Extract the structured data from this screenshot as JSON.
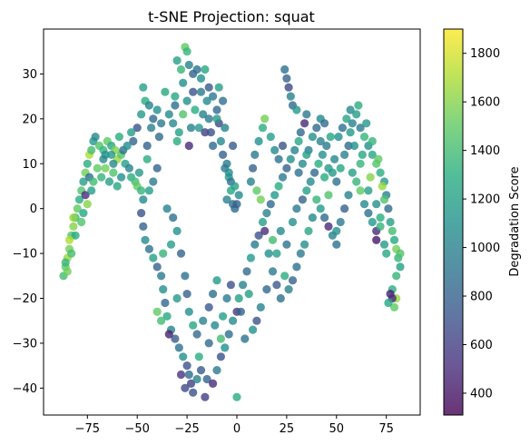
{
  "chart_data": {
    "type": "scatter",
    "title": "t-SNE Projection: squat",
    "xlabel": "",
    "ylabel": "",
    "xlim": [
      -97,
      92
    ],
    "ylim": [
      -46,
      40
    ],
    "x_ticks": [
      -75,
      -50,
      -25,
      0,
      25,
      50,
      75
    ],
    "y_ticks": [
      -40,
      -30,
      -20,
      -10,
      0,
      10,
      20,
      30
    ],
    "x_tick_labels": [
      "−75",
      "−50",
      "−25",
      "0",
      "25",
      "50",
      "75"
    ],
    "y_tick_labels": [
      "−40",
      "−30",
      "−20",
      "−10",
      "0",
      "10",
      "20",
      "30"
    ],
    "grid": false,
    "colormap": "viridis",
    "marker_alpha": 0.8,
    "colorbar": {
      "label": "Degradation Score",
      "range": [
        310,
        1900
      ],
      "ticks": [
        400,
        600,
        800,
        1000,
        1200,
        1400,
        1600,
        1800
      ],
      "tick_labels": [
        "400",
        "600",
        "800",
        "1000",
        "1200",
        "1400",
        "1600",
        "1800"
      ]
    },
    "points": [
      [
        -87,
        -15,
        1400
      ],
      [
        -86,
        -13,
        1500
      ],
      [
        -85,
        -11,
        1650
      ],
      [
        -84,
        -9,
        1550
      ],
      [
        -83,
        -6,
        1450
      ],
      [
        -82,
        -4,
        1600
      ],
      [
        -81,
        -2,
        1350
      ],
      [
        -80,
        0,
        1500
      ],
      [
        -79,
        2,
        1300
      ],
      [
        -78,
        4,
        1450
      ],
      [
        -77,
        6,
        1200
      ],
      [
        -76,
        8,
        1550
      ],
      [
        -75,
        10,
        1300
      ],
      [
        -74,
        12,
        1700
      ],
      [
        -73,
        13,
        1400
      ],
      [
        -72,
        15,
        1150
      ],
      [
        -71,
        16,
        1050
      ],
      [
        -69,
        14,
        1450
      ],
      [
        -67,
        13,
        1350
      ],
      [
        -65,
        15,
        1500
      ],
      [
        -63,
        14,
        1250
      ],
      [
        -61,
        13,
        1600
      ],
      [
        -60,
        11,
        1650
      ],
      [
        -58,
        12,
        1450
      ],
      [
        -56,
        10,
        1200
      ],
      [
        -54,
        9,
        1000
      ],
      [
        -53,
        7,
        1300
      ],
      [
        -51,
        6,
        1400
      ],
      [
        -50,
        5,
        1500
      ],
      [
        -48,
        4,
        1350
      ],
      [
        -76,
        3,
        500
      ],
      [
        -74,
        7,
        900
      ],
      [
        -77,
        -1,
        1250
      ],
      [
        -66,
        12,
        1100
      ],
      [
        -62,
        10,
        1050
      ],
      [
        -57,
        13,
        900
      ],
      [
        -52,
        15,
        800
      ],
      [
        -50,
        18,
        700
      ],
      [
        -48,
        21,
        1150
      ],
      [
        -46,
        24,
        1300
      ],
      [
        -47,
        27,
        1200
      ],
      [
        -44,
        23,
        1000
      ],
      [
        -42,
        20,
        850
      ],
      [
        -40,
        22,
        1100
      ],
      [
        -38,
        19,
        950
      ],
      [
        -36,
        26,
        1250
      ],
      [
        -34,
        21,
        1050
      ],
      [
        -31,
        23,
        900
      ],
      [
        -30,
        33,
        1200
      ],
      [
        -28,
        31,
        1350
      ],
      [
        -26,
        36,
        1500
      ],
      [
        -25,
        35,
        1350
      ],
      [
        -24,
        32,
        1000
      ],
      [
        -22,
        30,
        800
      ],
      [
        -20,
        31,
        900
      ],
      [
        -18,
        29,
        1100
      ],
      [
        -16,
        31,
        1250
      ],
      [
        -14,
        27,
        750
      ],
      [
        -12,
        25,
        950
      ],
      [
        -10,
        22,
        850
      ],
      [
        -9,
        19,
        650
      ],
      [
        -8,
        15,
        1050
      ],
      [
        -7,
        12,
        800
      ],
      [
        -6,
        9,
        950
      ],
      [
        -4,
        7,
        1150
      ],
      [
        -3,
        4,
        1250
      ],
      [
        -5,
        2,
        1000
      ],
      [
        -2,
        1,
        900
      ],
      [
        -1,
        0,
        850
      ],
      [
        -22,
        26,
        700
      ],
      [
        -21,
        22,
        1300
      ],
      [
        -19,
        18,
        1150
      ],
      [
        -17,
        21,
        1000
      ],
      [
        -16,
        17,
        600
      ],
      [
        -14,
        20,
        950
      ],
      [
        -12,
        14,
        850
      ],
      [
        -25,
        24,
        1100
      ],
      [
        -27,
        21,
        1450
      ],
      [
        -29,
        17,
        1200
      ],
      [
        -30,
        15,
        1300
      ],
      [
        -32,
        19,
        1050
      ],
      [
        -24,
        14,
        500
      ],
      [
        -23,
        18,
        1000
      ],
      [
        -48,
        -1,
        700
      ],
      [
        -47,
        -4,
        800
      ],
      [
        -46,
        -7,
        1050
      ],
      [
        -44,
        -9,
        900
      ],
      [
        -42,
        -11,
        1200
      ],
      [
        -40,
        -13,
        800
      ],
      [
        -38,
        -15,
        950
      ],
      [
        -37,
        -18,
        1100
      ],
      [
        -36,
        -21,
        850
      ],
      [
        -35,
        -24,
        1250
      ],
      [
        -33,
        -27,
        1000
      ],
      [
        -31,
        -29,
        750
      ],
      [
        -29,
        -31,
        900
      ],
      [
        -27,
        -33,
        1100
      ],
      [
        -25,
        -35,
        700
      ],
      [
        -24,
        -37,
        850
      ],
      [
        -23,
        -39,
        600
      ],
      [
        -22,
        -41,
        700
      ],
      [
        -20,
        -38,
        1000
      ],
      [
        -18,
        -36,
        750
      ],
      [
        -15,
        -38,
        800
      ],
      [
        -12,
        -39,
        500
      ],
      [
        -10,
        -36,
        950
      ],
      [
        -8,
        -33,
        700
      ],
      [
        -6,
        -31,
        1100
      ],
      [
        -4,
        -28,
        900
      ],
      [
        -2,
        -25,
        1050
      ],
      [
        0,
        -23,
        550
      ],
      [
        1,
        -20,
        1200
      ],
      [
        0,
        -42,
        1300
      ],
      [
        -26,
        -15,
        900
      ],
      [
        -25,
        -19,
        800
      ],
      [
        -24,
        -23,
        1100
      ],
      [
        -22,
        -26,
        1250
      ],
      [
        -20,
        -28,
        850
      ],
      [
        -17,
        -25,
        1000
      ],
      [
        -14,
        -22,
        750
      ],
      [
        -12,
        -19,
        900
      ],
      [
        -10,
        -16,
        1150
      ],
      [
        -30,
        -5,
        1100
      ],
      [
        -32,
        -2,
        900
      ],
      [
        -35,
        0,
        1000
      ],
      [
        -33,
        -8,
        1200
      ],
      [
        -28,
        -10,
        800
      ],
      [
        -30,
        -20,
        1150
      ],
      [
        -34,
        -28,
        450
      ],
      [
        -38,
        -25,
        1400
      ],
      [
        -40,
        -23,
        1500
      ],
      [
        -16,
        -42,
        600
      ],
      [
        -19,
        -33,
        1300
      ],
      [
        -11,
        -26,
        1050
      ],
      [
        -7,
        -24,
        1200
      ],
      [
        -5,
        -20,
        950
      ],
      [
        -3,
        -17,
        700
      ],
      [
        -8,
        -29,
        1400
      ],
      [
        -28,
        -37,
        550
      ],
      [
        -26,
        -40,
        650
      ],
      [
        -14,
        -30,
        850
      ],
      [
        -37,
        -10,
        1350
      ],
      [
        3,
        -17,
        1000
      ],
      [
        5,
        -14,
        850
      ],
      [
        7,
        -11,
        1150
      ],
      [
        9,
        -8,
        950
      ],
      [
        11,
        -6,
        700
      ],
      [
        13,
        -3,
        1200
      ],
      [
        15,
        -1,
        1000
      ],
      [
        17,
        1,
        850
      ],
      [
        19,
        3,
        1150
      ],
      [
        21,
        5,
        1300
      ],
      [
        23,
        7,
        950
      ],
      [
        25,
        9,
        800
      ],
      [
        27,
        11,
        1100
      ],
      [
        29,
        13,
        1000
      ],
      [
        31,
        15,
        1250
      ],
      [
        32,
        17,
        850
      ],
      [
        34,
        19,
        500
      ],
      [
        35,
        21,
        950
      ],
      [
        24,
        31,
        900
      ],
      [
        25,
        29,
        800
      ],
      [
        26,
        27,
        650
      ],
      [
        27,
        25,
        1000
      ],
      [
        28,
        23,
        850
      ],
      [
        30,
        22,
        1150
      ],
      [
        16,
        -10,
        1100
      ],
      [
        18,
        -14,
        950
      ],
      [
        20,
        -17,
        750
      ],
      [
        22,
        -20,
        900
      ],
      [
        15,
        -18,
        850
      ],
      [
        12,
        -22,
        1000
      ],
      [
        10,
        -25,
        700
      ],
      [
        8,
        -27,
        1100
      ],
      [
        4,
        -29,
        900
      ],
      [
        2,
        -23,
        800
      ],
      [
        6,
        -19,
        1200
      ],
      [
        14,
        -5,
        500
      ],
      [
        22,
        -5,
        1050
      ],
      [
        25,
        -8,
        900
      ],
      [
        28,
        -3,
        1100
      ],
      [
        30,
        0,
        950
      ],
      [
        33,
        2,
        800
      ],
      [
        35,
        4,
        1200
      ],
      [
        37,
        6,
        1050
      ],
      [
        39,
        8,
        850
      ],
      [
        41,
        10,
        1300
      ],
      [
        43,
        12,
        1100
      ],
      [
        45,
        14,
        950
      ],
      [
        47,
        16,
        1250
      ],
      [
        40,
        2,
        1350
      ],
      [
        42,
        0,
        1150
      ],
      [
        44,
        -2,
        850
      ],
      [
        46,
        -4,
        500
      ],
      [
        48,
        -6,
        1000
      ],
      [
        50,
        -8,
        900
      ],
      [
        38,
        -2,
        1050
      ],
      [
        36,
        -5,
        1250
      ],
      [
        34,
        -8,
        1100
      ],
      [
        32,
        -10,
        950
      ],
      [
        30,
        -13,
        900
      ],
      [
        28,
        -16,
        800
      ],
      [
        26,
        -18,
        1000
      ],
      [
        24,
        -15,
        1300
      ],
      [
        20,
        -10,
        1200
      ],
      [
        18,
        -7,
        1400
      ],
      [
        10,
        4,
        1500
      ],
      [
        12,
        2,
        1550
      ],
      [
        14,
        20,
        1550
      ],
      [
        13,
        18,
        1300
      ],
      [
        11,
        15,
        1100
      ],
      [
        9,
        12,
        950
      ],
      [
        8,
        9,
        800
      ],
      [
        7,
        6,
        1000
      ],
      [
        17,
        16,
        1200
      ],
      [
        19,
        13,
        1050
      ],
      [
        21,
        11,
        900
      ],
      [
        23,
        14,
        700
      ],
      [
        42,
        20,
        1050
      ],
      [
        44,
        19,
        850
      ],
      [
        48,
        8,
        1150
      ],
      [
        50,
        6,
        900
      ],
      [
        52,
        9,
        1250
      ],
      [
        54,
        12,
        1000
      ],
      [
        56,
        14,
        850
      ],
      [
        57,
        17,
        1150
      ],
      [
        58,
        19,
        1000
      ],
      [
        60,
        21,
        1200
      ],
      [
        62,
        18,
        950
      ],
      [
        64,
        16,
        1350
      ],
      [
        66,
        14,
        1100
      ],
      [
        68,
        12,
        1250
      ],
      [
        70,
        10,
        1450
      ],
      [
        72,
        8,
        1300
      ],
      [
        74,
        6,
        1150
      ],
      [
        75,
        3,
        1000
      ],
      [
        76,
        0,
        850
      ],
      [
        77,
        -3,
        1200
      ],
      [
        78,
        -5,
        1400
      ],
      [
        79,
        -7,
        1250
      ],
      [
        80,
        -9,
        1550
      ],
      [
        81,
        -11,
        1350
      ],
      [
        82,
        -13,
        1200
      ],
      [
        78,
        -18,
        1300
      ],
      [
        80,
        -20,
        1650
      ],
      [
        79,
        -22,
        1500
      ],
      [
        77,
        -19,
        450
      ],
      [
        78,
        -20,
        500
      ],
      [
        76,
        -21,
        1250
      ],
      [
        70,
        -7,
        400
      ],
      [
        70,
        -5,
        500
      ],
      [
        68,
        -3,
        1150
      ],
      [
        66,
        -1,
        900
      ],
      [
        64,
        1,
        1050
      ],
      [
        62,
        4,
        1500
      ],
      [
        60,
        6,
        1350
      ],
      [
        58,
        8,
        1200
      ],
      [
        56,
        3,
        1000
      ],
      [
        54,
        0,
        800
      ],
      [
        52,
        -3,
        950
      ],
      [
        50,
        -5,
        1100
      ],
      [
        55,
        20,
        1250
      ],
      [
        57,
        22,
        1050
      ],
      [
        53,
        18,
        900
      ],
      [
        51,
        16,
        1100
      ],
      [
        61,
        23,
        1300
      ],
      [
        65,
        19,
        1150
      ],
      [
        68,
        15,
        1350
      ],
      [
        71,
        11,
        1500
      ],
      [
        73,
        5,
        1650
      ],
      [
        74,
        2,
        1450
      ],
      [
        72,
        -2,
        1300
      ],
      [
        75,
        -10,
        1250
      ],
      [
        67,
        7,
        1600
      ],
      [
        63,
        12,
        1250
      ],
      [
        59,
        14,
        1100
      ],
      [
        49,
        11,
        1050
      ],
      [
        46,
        9,
        1150
      ],
      [
        36,
        13,
        950
      ],
      [
        38,
        16,
        1100
      ],
      [
        40,
        18,
        850
      ],
      [
        42,
        15,
        1000
      ],
      [
        31,
        8,
        900
      ],
      [
        33,
        10,
        1050
      ],
      [
        35,
        12,
        1200
      ],
      [
        44,
        7,
        1300
      ],
      [
        46,
        3,
        1450
      ],
      [
        62,
        10,
        1350
      ],
      [
        66,
        4,
        1200
      ],
      [
        70,
        1,
        1100
      ],
      [
        72,
        -4,
        1350
      ],
      [
        74,
        -8,
        1150
      ],
      [
        82,
        -10,
        1450
      ],
      [
        80,
        -15,
        1350
      ],
      [
        -5,
        10,
        950
      ],
      [
        -4,
        8,
        1100
      ],
      [
        -3,
        6,
        900
      ],
      [
        -1,
        5,
        1200
      ],
      [
        1,
        3,
        1050
      ],
      [
        0,
        1,
        800
      ],
      [
        -2,
        14,
        750
      ],
      [
        -6,
        18,
        1000
      ],
      [
        -10,
        20,
        1150
      ],
      [
        -13,
        17,
        700
      ],
      [
        -15,
        24,
        1050
      ],
      [
        -18,
        26,
        950
      ],
      [
        -9,
        27,
        1200
      ],
      [
        -7,
        24,
        900
      ],
      [
        -27,
        28,
        1100
      ],
      [
        -31,
        25,
        1250
      ],
      [
        -39,
        16,
        850
      ],
      [
        -43,
        18,
        1000
      ],
      [
        -45,
        14,
        800
      ],
      [
        -53,
        17,
        1200
      ],
      [
        -55,
        14,
        1100
      ],
      [
        -59,
        16,
        1300
      ],
      [
        -63,
        12,
        1150
      ],
      [
        -67,
        11,
        1050
      ],
      [
        -70,
        9,
        1500
      ],
      [
        -72,
        6,
        1400
      ],
      [
        -73,
        4,
        1200
      ],
      [
        -75,
        1,
        1600
      ],
      [
        -78,
        -3,
        1450
      ],
      [
        -81,
        -6,
        1300
      ],
      [
        -83,
        -10,
        1400
      ],
      [
        -85,
        -14,
        1550
      ],
      [
        -86,
        -12,
        1350
      ],
      [
        -84,
        -7,
        1700
      ],
      [
        -82,
        -2,
        1650
      ],
      [
        -44,
        4,
        1200
      ],
      [
        -47,
        2,
        1050
      ],
      [
        -49,
        8,
        1150
      ],
      [
        -42,
        6,
        950
      ],
      [
        -40,
        9,
        800
      ],
      [
        -45,
        11,
        1300
      ],
      [
        -60,
        5,
        1250
      ],
      [
        -58,
        7,
        1100
      ],
      [
        -62,
        8,
        1450
      ],
      [
        -64,
        6,
        1200
      ],
      [
        -66,
        9,
        1550
      ],
      [
        -68,
        7,
        1350
      ]
    ]
  }
}
